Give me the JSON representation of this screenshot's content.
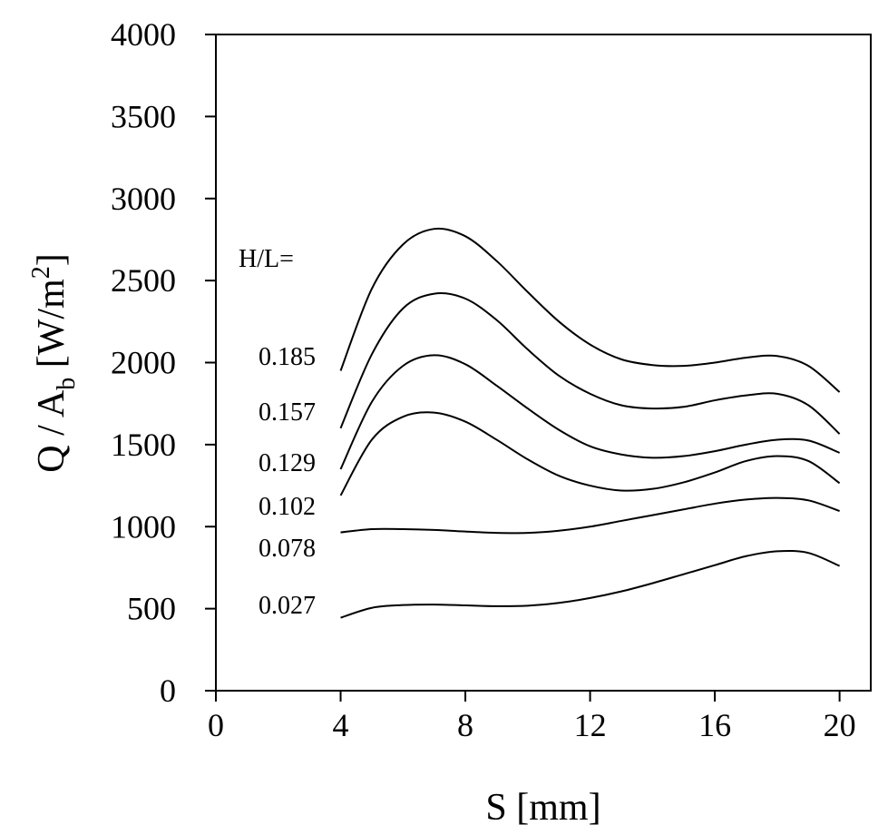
{
  "chart_data": {
    "type": "line",
    "xlabel": "S [mm]",
    "ylabel": [
      "Q / A",
      "b",
      " [W/m",
      "2",
      "]"
    ],
    "annotation": "H/L=",
    "x": [
      4,
      5,
      6,
      7,
      8,
      9,
      10,
      11,
      12,
      13,
      14,
      15,
      16,
      17,
      18,
      19,
      20
    ],
    "series": [
      {
        "name": "0.185",
        "color": "#000000",
        "values": [
          1950,
          2450,
          2720,
          2815,
          2770,
          2620,
          2430,
          2250,
          2110,
          2020,
          1985,
          1980,
          2000,
          2030,
          2040,
          1980,
          1820
        ]
      },
      {
        "name": "0.157",
        "color": "#000000",
        "values": [
          1600,
          2050,
          2330,
          2420,
          2390,
          2260,
          2080,
          1920,
          1810,
          1740,
          1720,
          1730,
          1770,
          1800,
          1810,
          1740,
          1565
        ]
      },
      {
        "name": "0.129",
        "color": "#000000",
        "values": [
          1350,
          1760,
          1980,
          2045,
          1990,
          1860,
          1720,
          1590,
          1490,
          1440,
          1420,
          1430,
          1460,
          1500,
          1530,
          1525,
          1450
        ]
      },
      {
        "name": "0.102",
        "color": "#000000",
        "values": [
          1190,
          1530,
          1670,
          1695,
          1640,
          1530,
          1410,
          1310,
          1250,
          1220,
          1230,
          1270,
          1330,
          1400,
          1430,
          1400,
          1265
        ]
      },
      {
        "name": "0.078",
        "color": "#000000",
        "values": [
          965,
          985,
          985,
          980,
          970,
          962,
          962,
          975,
          1000,
          1035,
          1070,
          1105,
          1140,
          1165,
          1175,
          1160,
          1095
        ]
      },
      {
        "name": "0.027",
        "color": "#000000",
        "values": [
          445,
          505,
          522,
          525,
          520,
          515,
          518,
          535,
          565,
          605,
          655,
          710,
          765,
          820,
          850,
          840,
          760
        ]
      }
    ],
    "xlim": [
      0,
      21
    ],
    "xticks": [
      0,
      4,
      8,
      12,
      16,
      20
    ],
    "ylim": [
      0,
      4000
    ],
    "yticks": [
      0,
      500,
      1000,
      1500,
      2000,
      2500,
      3000,
      3500,
      4000
    ],
    "grid": false
  }
}
